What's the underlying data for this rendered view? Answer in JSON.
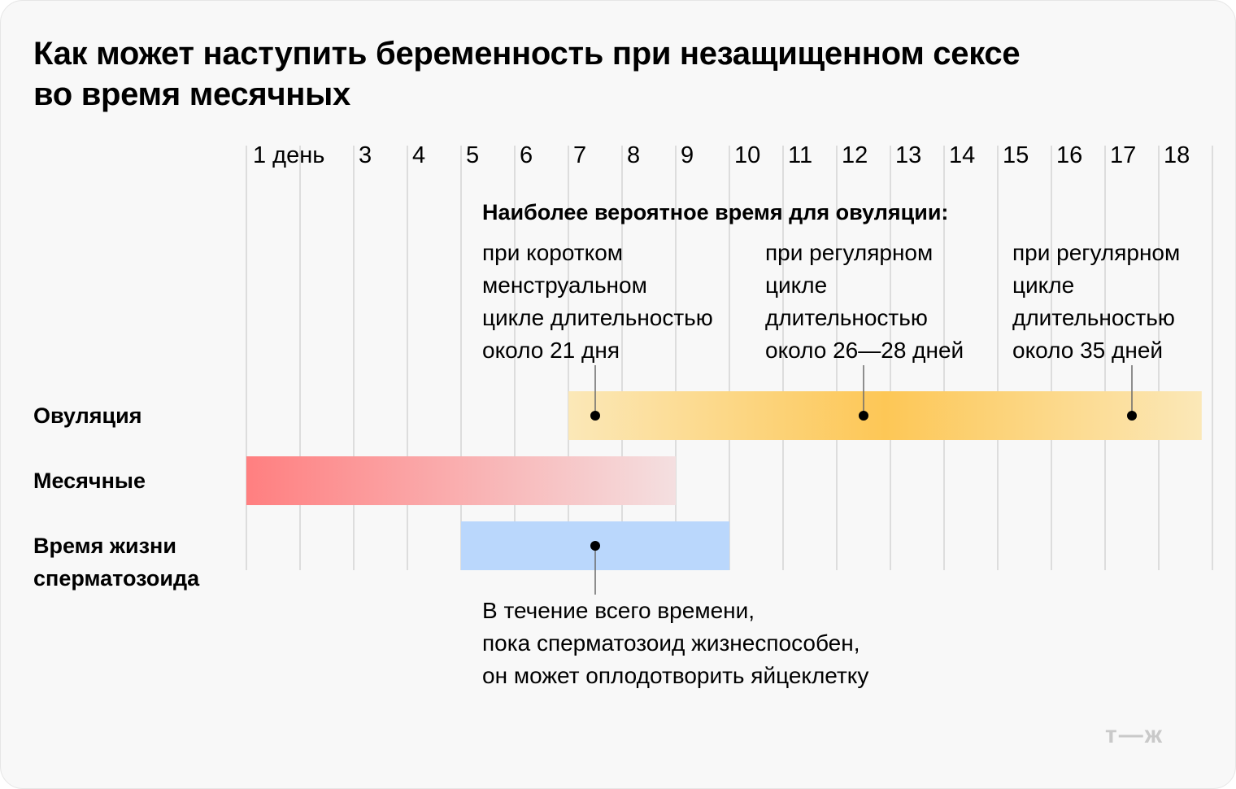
{
  "title_lines": [
    "Как может наступить беременность при незащищенном сексе",
    "во время месячных"
  ],
  "chart_data": {
    "type": "gantt",
    "x_labels": [
      "1 день",
      "3",
      "4",
      "5",
      "6",
      "7",
      "8",
      "9",
      "10",
      "11",
      "12",
      "13",
      "14",
      "15",
      "16",
      "17",
      "18"
    ],
    "rows": [
      {
        "label_lines": [
          "Овуляция"
        ],
        "start": 7,
        "end": 18.8,
        "gradient": [
          "#fbe8b8",
          "#fdc756",
          "#fbe8b8"
        ],
        "points": [
          7.5,
          12.5,
          17.5
        ]
      },
      {
        "label_lines": [
          "Месячные"
        ],
        "start": 1,
        "end": 9,
        "gradient": [
          "#ff7f80",
          "#f4dfe0"
        ],
        "points": []
      },
      {
        "label_lines": [
          "Время жизни",
          "сперматозоида"
        ],
        "start": 5,
        "end": 10,
        "gradient": [
          "#bad7fc",
          "#bad7fc"
        ],
        "points": [
          7.5
        ]
      }
    ],
    "heading": "Наиболее вероятное время для овуляции:",
    "annotations": [
      {
        "lines": [
          "при коротком",
          "менструальном",
          "цикле длительностью",
          "около 21 дня"
        ],
        "point": 7.5
      },
      {
        "lines": [
          "при регулярном",
          "цикле",
          "длительностью",
          "около 26—28 дней"
        ],
        "point": 12.5
      },
      {
        "lines": [
          "при регулярном",
          "цикле",
          "длительностью",
          "около 35 дней"
        ],
        "point": 17.5
      }
    ],
    "note_lines": [
      "В течение всего времени,",
      "пока сперматозоид жизнеспособен,",
      "он может оплодотворить яйцеклетку"
    ],
    "colors": {
      "grid": "#d4d4d4",
      "leader": "#6b6b6b",
      "dot": "#000000"
    }
  },
  "logo": "т—ж"
}
